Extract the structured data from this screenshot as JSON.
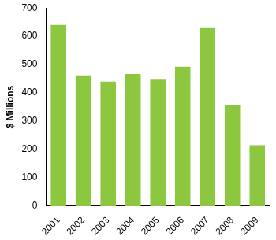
{
  "chart_data": {
    "type": "bar",
    "y_label": "$ Millions",
    "categories": [
      "2001",
      "2002",
      "2003",
      "2004",
      "2005",
      "2006",
      "2007",
      "2008",
      "2009"
    ],
    "values": [
      640,
      462,
      440,
      467,
      447,
      493,
      632,
      357,
      215
    ],
    "color": "#8dc63f",
    "ylim": [
      0,
      700
    ],
    "yticks": [
      0,
      100,
      200,
      300,
      400,
      500,
      600,
      700
    ],
    "grid": false
  }
}
